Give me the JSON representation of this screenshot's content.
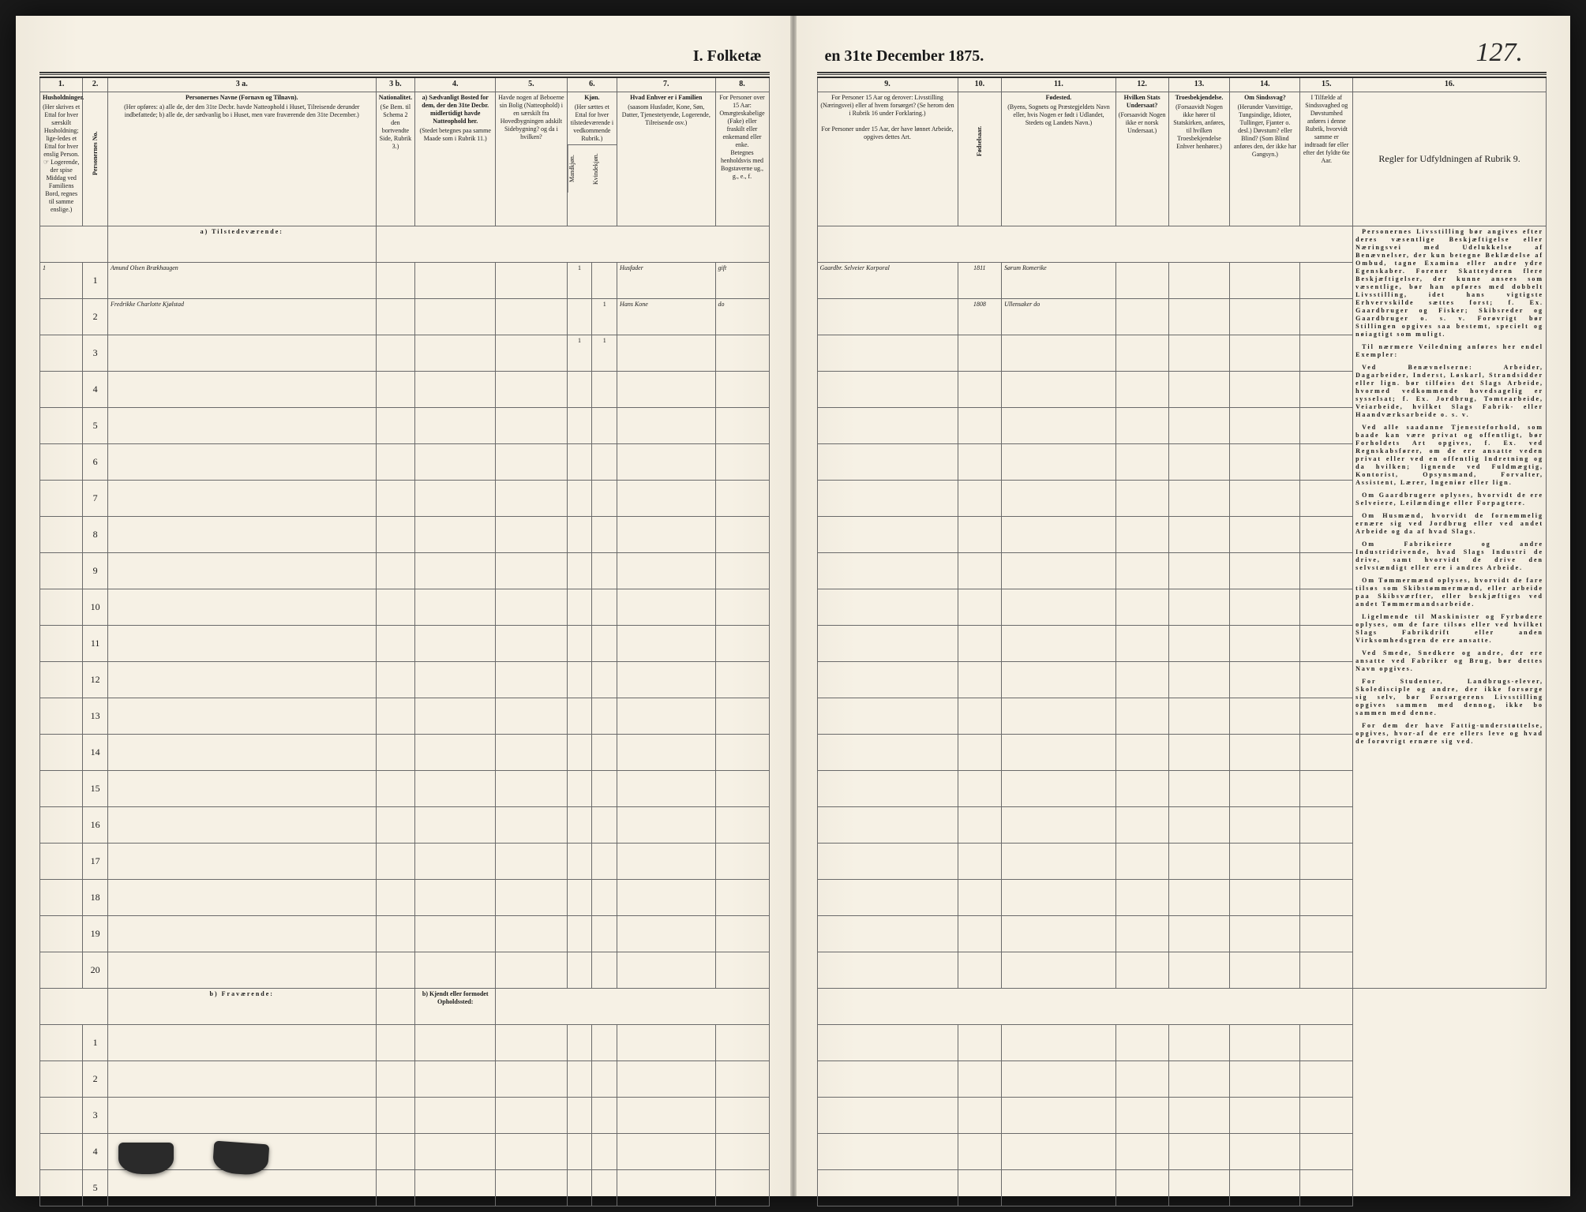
{
  "document": {
    "title_left": "I. Folketæ",
    "title_right": "en 31te December 1875.",
    "page_number": "127."
  },
  "columns_left": {
    "c1": {
      "num": "1.",
      "title": "Husholdninger.",
      "text": "(Her skrives et Ettal for hver særskilt Husholdning; lige-ledes et Ettal for hver enslig Person. ☞ Logerende, der spise Middag ved Familiens Bord, regnes til samme enslige.)"
    },
    "c2": {
      "num": "2.",
      "title": "Personernes No."
    },
    "c3a": {
      "num": "3 a.",
      "title": "Personernes Navne (Fornavn og Tilnavn).",
      "text": "(Her opføres: a) alle de, der den 31te Decbr. havde Natteophold i Huset, Tilreisende derunder indbefattede; b) alle de, der sædvanlig bo i Huset, men vare fraværende den 31te December.)"
    },
    "c3b": {
      "num": "3 b.",
      "title": "Nationalitet.",
      "text": "(Se Bem. til Schema 2 den bortvendte Side, Rubrik 3.)"
    },
    "c4": {
      "num": "4.",
      "title": "a) Sædvanligt Bosted for dem, der den 31te Decbr. midlertidigt havde Natteophold her.",
      "text": "(Stedet betegnes paa samme Maade som i Rubrik 11.)"
    },
    "c5": {
      "num": "5.",
      "title": "Havde nogen af Beboerne sin Bolig (Natteophold) i en særskilt fra Hovedbygningen adskilt Sidebygning? og da i hvilken?"
    },
    "c6": {
      "num": "6.",
      "title": "Kjøn.",
      "text": "(Her sættes et Ettal for hver tilstedeværende i vedkommende Rubrik.)",
      "sub_m": "Mandkjøn.",
      "sub_k": "Kvindekjøn."
    },
    "c7": {
      "num": "7.",
      "title": "Hvad Enhver er i Familien",
      "text": "(saasom Husfader, Kone, Søn, Datter, Tjenestetyende, Logerende, Tilreisende osv.)"
    },
    "c8": {
      "num": "8.",
      "title": "For Personer over 15 Aar: Omægteskabelige (Fake) eller fraskilt eller enkemand eller enke.",
      "sub": "Betegnes henholdsvis med Bogstaverne ug., g., e., f."
    }
  },
  "columns_right": {
    "c9": {
      "num": "9.",
      "title": "For Personer 15 Aar og derover: Livsstilling (Næringsvei) eller af hvem forsørget? (Se herom den i Rubrik 16 under Forklaring.)",
      "text": "For Personer under 15 Aar, der have lønnet Arbeide, opgives dettes Art."
    },
    "c10": {
      "num": "10.",
      "title": "Fødselsaar."
    },
    "c11": {
      "num": "11.",
      "title": "Fødested.",
      "text": "(Byens, Sognets og Præstegjeldets Navn eller, hvis Nogen er født i Udlandet, Stedets og Landets Navn.)"
    },
    "c12": {
      "num": "12.",
      "title": "Hvilken Stats Undersaat?",
      "text": "(Forsaavidt Nogen ikke er norsk Undersaat.)"
    },
    "c13": {
      "num": "13.",
      "title": "Troesbekjendelse.",
      "text": "(Forsaavidt Nogen ikke hører til Statskirken, anføres, til hvilken Troesbekjendelse Enhver henhører.)"
    },
    "c14": {
      "num": "14.",
      "title": "Om Sindssvag?",
      "text": "(Herunder Vanvittige, Tungsindige, Idioter, Tullinger, Fjanter o. desl.) Døvstum? eller Blind? (Som Blind anføres den, der ikke har Gangsyn.)"
    },
    "c15": {
      "num": "15.",
      "title": "I Tilfælde af Sindssvaghed og Døvstumhed anføres i denne Rubrik, hvorvidt samme er indtraadt før eller efter det fyldte 6te Aar."
    },
    "c16": {
      "num": "16.",
      "title": "Regler for Udfyldningen af Rubrik 9."
    }
  },
  "section_labels": {
    "present": "a) Tilstedeværende:",
    "absent": "b) Fraværende:",
    "absent_note": "b) Kjendt eller formodet Opholdssted:"
  },
  "rows_present": [
    {
      "n": "1",
      "hh": "1",
      "name": "Amund Olsen Brækhaugen",
      "sex_m": "1",
      "sex_k": "",
      "family": "Husfader",
      "civil": "gift",
      "occupation": "Gaardbr. Selveier Korporal",
      "year": "1811",
      "birthplace": "Sørum Romerike"
    },
    {
      "n": "2",
      "hh": "",
      "name": "Fredrikke Charlotte Kjølstad",
      "sex_m": "",
      "sex_k": "1",
      "family": "Hans Kone",
      "civil": "do",
      "occupation": "",
      "year": "1808",
      "birthplace": "Ullensaker do"
    },
    {
      "n": "3",
      "hh": "",
      "name": "",
      "sex_m": "1",
      "sex_k": "1",
      "family": "",
      "civil": "",
      "occupation": "",
      "year": "",
      "birthplace": ""
    },
    {
      "n": "4"
    },
    {
      "n": "5"
    },
    {
      "n": "6"
    },
    {
      "n": "7"
    },
    {
      "n": "8"
    },
    {
      "n": "9"
    },
    {
      "n": "10"
    },
    {
      "n": "11"
    },
    {
      "n": "12"
    },
    {
      "n": "13"
    },
    {
      "n": "14"
    },
    {
      "n": "15"
    },
    {
      "n": "16"
    },
    {
      "n": "17"
    },
    {
      "n": "18"
    },
    {
      "n": "19"
    },
    {
      "n": "20"
    }
  ],
  "rows_absent": [
    {
      "n": "1"
    },
    {
      "n": "2"
    },
    {
      "n": "3"
    },
    {
      "n": "4"
    },
    {
      "n": "5"
    }
  ],
  "instructions": {
    "p1": "Personernes Livsstilling bør angives efter deres væsentlige Beskjæftigelse eller Næringsvei med Udelukkelse af Benævnelser, der kun betegne Beklædelse af Ombud, tagne Examina eller andre ydre Egenskaber. Forener Skatteyderen flere Beskjæftigelser, der kunne ansees som væsentlige, bør han opføres med dobbelt Livsstilling, idet hans vigtigste Erhvervskilde sættes forst; f. Ex. Gaardbruger og Fisker; Skibsreder og Gaardbruger o. s. v. Forøvrigt bør Stillingen opgives saa bestemt, specielt og nøiagtigt som muligt.",
    "p2": "Til nærmere Veiledning anføres her endel Exempler:",
    "p3": "Ved Benævnelserne: Arbeider, Dagarbeider, Inderst, Løskarl, Strandsidder eller lign. bør tilføies det Slags Arbeide, hvormed vedkommende hovedsagelig er sysselsat; f. Ex. Jordbrug, Tomtearbeide, Veiarbeide, hvilket Slags Fabrik- eller Haandværksarbeide o. s. v.",
    "p4": "Ved alle saadanne Tjenesteforhold, som baade kan være privat og offentligt, bør Forholdets Art opgives, f. Ex. ved Regnskabsfører, om de ere ansatte veden privat eller ved en offentlig Indretning og da hvilken; lignende ved Fuldmægtig, Kontorist, Opsynsmand, Forvalter, Assistent, Lærer, Ingeniør eller lign.",
    "p5": "Om Gaardbrugere oplyses, hvorvidt de ere Selveiere, Leilændinge eller Forpagtere.",
    "p6": "Om Husmænd, hvorvidt de fornemmelig ernære sig ved Jordbrug eller ved andet Arbeide og da af hvad Slags.",
    "p7": "Om Fabrikeiere og andre Industridrivende, hvad Slags Industri de drive, samt hvorvidt de drive den selvstændigt eller ere i andres Arbeide.",
    "p8": "Om Tømmermænd oplyses, hvorvidt de fare tilsøs som Skibstømmermænd, eller arbeide paa Skibsværfter, eller beskjæftiges ved andet Tømmermandsarbeide.",
    "p9": "Ligelmende til Maskinister og Fyrbødere oplyses, om de fare tilsøs eller ved hvilket Slags Fabrikdrift eller anden Virksomhedsgren de ere ansatte.",
    "p10": "Ved Smede, Snedkere og andre, der ere ansatte ved Fabriker og Brug, bør dettes Navn opgives.",
    "p11": "For Studenter, Landbrugs-elever, Skoledisciple og andre, der ikke forsørge sig selv, bør Forsørgerens Livsstilling opgives sammen med dennog, ikke bo sammen med denne.",
    "p12": "For dem der have Fattig-understøttelse, opgives, hvor-af de ere ellers leve og hvad de forøvrigt ernære sig ved."
  },
  "colors": {
    "paper": "#f4efe4",
    "ink": "#1a1a1a",
    "rule": "#6a6a6a",
    "handwriting": "#6b5a3a"
  }
}
